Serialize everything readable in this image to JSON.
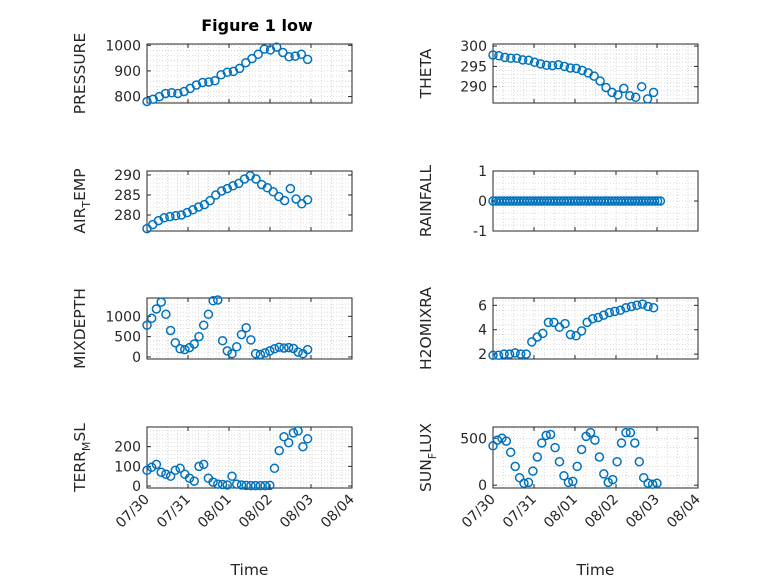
{
  "figure": {
    "title": "Figure 1 low"
  },
  "colors": {
    "marker": "#0072BD",
    "axis": "#262626",
    "grid": "#cfcfcf",
    "background": "#ffffff"
  },
  "chart_data": [
    {
      "id": "pressure",
      "type": "scatter",
      "ylabel": "PRESSURE",
      "xlim": [
        "07/30",
        "08/04"
      ],
      "ylim": [
        775,
        1005
      ],
      "yticks": [
        800,
        900,
        1000
      ],
      "xticks": [
        "07/30",
        "07/31",
        "08/01",
        "08/02",
        "08/03",
        "08/04"
      ],
      "show_xticklabels": false,
      "grid": true,
      "x_start": "07/30",
      "x_end": "08/02 22:00",
      "y": [
        781,
        790,
        800,
        812,
        815,
        812,
        820,
        832,
        845,
        855,
        857,
        862,
        885,
        895,
        898,
        910,
        932,
        948,
        965,
        985,
        982,
        993,
        972,
        955,
        958,
        965,
        945
      ]
    },
    {
      "id": "theta",
      "type": "scatter",
      "ylabel": "THETA",
      "xlim": [
        "07/30",
        "08/04"
      ],
      "ylim": [
        286,
        300.5
      ],
      "yticks": [
        290,
        295,
        300
      ],
      "xticks": [
        "07/30",
        "07/31",
        "08/01",
        "08/02",
        "08/03",
        "08/04"
      ],
      "show_xticklabels": false,
      "grid": true,
      "x_start": "07/30",
      "x_end": "08/02 22:00",
      "y": [
        297.8,
        297.6,
        297.2,
        297.0,
        297.0,
        296.6,
        296.5,
        296.0,
        295.6,
        295.3,
        295.2,
        295.4,
        295.0,
        294.6,
        294.5,
        294.0,
        293.4,
        292.6,
        291.4,
        289.8,
        288.6,
        288.0,
        289.6,
        287.8,
        287.4,
        290.0,
        287.0,
        288.6
      ]
    },
    {
      "id": "air_temp",
      "type": "scatter",
      "ylabel": "AIR_TEMP",
      "xlim": [
        "07/30",
        "08/04"
      ],
      "ylim": [
        276,
        291
      ],
      "yticks": [
        280,
        285,
        290
      ],
      "xticks": [
        "07/30",
        "07/31",
        "08/01",
        "08/02",
        "08/03",
        "08/04"
      ],
      "show_xticklabels": false,
      "grid": true,
      "x_start": "07/30",
      "x_end": "08/02 22:00",
      "y": [
        276.6,
        277.6,
        278.6,
        279.3,
        279.6,
        279.8,
        280.0,
        280.6,
        281.3,
        282.0,
        282.6,
        283.6,
        285.0,
        286.0,
        286.6,
        287.3,
        287.9,
        289.0,
        289.8,
        289.0,
        287.6,
        286.8,
        285.8,
        284.6,
        283.6,
        286.6,
        284.0,
        282.8,
        283.8
      ]
    },
    {
      "id": "rainfall",
      "type": "scatter",
      "ylabel": "RAINFALL",
      "xlim": [
        "07/30",
        "08/04"
      ],
      "ylim": [
        -1,
        1
      ],
      "yticks": [
        -1,
        0,
        1
      ],
      "xticks": [
        "07/30",
        "07/31",
        "08/01",
        "08/02",
        "08/03",
        "08/04"
      ],
      "show_xticklabels": false,
      "grid": true,
      "x_start": "07/30",
      "x_end": "08/03 02:00",
      "y": [
        0,
        0,
        0,
        0,
        0,
        0,
        0,
        0,
        0,
        0,
        0,
        0,
        0,
        0,
        0,
        0,
        0,
        0,
        0,
        0,
        0,
        0,
        0,
        0,
        0,
        0,
        0,
        0,
        0,
        0,
        0,
        0,
        0,
        0,
        0,
        0,
        0,
        0,
        0,
        0,
        0,
        0,
        0,
        0,
        0,
        0,
        0,
        0,
        0,
        0,
        0,
        0,
        0,
        0,
        0,
        0,
        0,
        0,
        0,
        0
      ]
    },
    {
      "id": "mixdepth",
      "type": "scatter",
      "ylabel": "MIXDEPTH",
      "xlim": [
        "07/30",
        "08/04"
      ],
      "ylim": [
        -50,
        1450
      ],
      "yticks": [
        0,
        500,
        1000
      ],
      "xticks": [
        "07/30",
        "07/31",
        "08/01",
        "08/02",
        "08/03",
        "08/04"
      ],
      "show_xticklabels": false,
      "grid": true,
      "x_start": "07/30",
      "x_end": "08/02 22:00",
      "y": [
        780,
        950,
        1180,
        1350,
        1050,
        650,
        350,
        200,
        180,
        230,
        320,
        500,
        780,
        1050,
        1380,
        1400,
        400,
        150,
        80,
        250,
        550,
        720,
        420,
        80,
        60,
        100,
        150,
        200,
        240,
        220,
        230,
        210,
        120,
        80,
        180
      ]
    },
    {
      "id": "h2omixra",
      "type": "scatter",
      "ylabel": "H2OMIXRA",
      "xlim": [
        "07/30",
        "08/04"
      ],
      "ylim": [
        1.6,
        6.6
      ],
      "yticks": [
        2,
        4,
        6
      ],
      "xticks": [
        "07/30",
        "07/31",
        "08/01",
        "08/02",
        "08/03",
        "08/04"
      ],
      "show_xticklabels": false,
      "grid": true,
      "x_start": "07/30",
      "x_end": "08/02 22:00",
      "y": [
        1.9,
        1.9,
        2.0,
        2.0,
        2.1,
        2.0,
        2.0,
        3.0,
        3.4,
        3.7,
        4.6,
        4.6,
        4.2,
        4.5,
        3.6,
        3.5,
        3.9,
        4.6,
        4.9,
        5.0,
        5.2,
        5.4,
        5.5,
        5.6,
        5.8,
        5.9,
        6.0,
        6.1,
        5.9,
        5.8
      ]
    },
    {
      "id": "terr_msl",
      "type": "scatter",
      "ylabel": "TERR_MSL",
      "xlim": [
        "07/30",
        "08/04"
      ],
      "ylim": [
        -10,
        300
      ],
      "yticks": [
        0,
        100,
        200
      ],
      "xticks": [
        "07/30",
        "07/31",
        "08/01",
        "08/02",
        "08/03",
        "08/04"
      ],
      "show_xticklabels": true,
      "xlabel": "Time",
      "grid": true,
      "x_start": "07/30",
      "x_end": "08/02 22:00",
      "y": [
        80,
        95,
        110,
        70,
        60,
        50,
        80,
        90,
        60,
        40,
        25,
        100,
        110,
        40,
        20,
        10,
        8,
        5,
        50,
        10,
        5,
        3,
        2,
        2,
        2,
        2,
        3,
        90,
        180,
        250,
        220,
        270,
        280,
        200,
        240
      ]
    },
    {
      "id": "sun_flux",
      "type": "scatter",
      "ylabel": "SUN_FLUX",
      "xlim": [
        "07/30",
        "08/04"
      ],
      "ylim": [
        -30,
        620
      ],
      "yticks": [
        0,
        500
      ],
      "xticks": [
        "07/30",
        "07/31",
        "08/01",
        "08/02",
        "08/03",
        "08/04"
      ],
      "show_xticklabels": true,
      "xlabel": "Time",
      "grid": true,
      "x_start": "07/30",
      "x_end": "08/03",
      "y": [
        420,
        480,
        500,
        470,
        350,
        200,
        80,
        20,
        30,
        150,
        300,
        450,
        530,
        540,
        400,
        250,
        100,
        30,
        40,
        200,
        380,
        520,
        560,
        480,
        300,
        120,
        30,
        60,
        250,
        450,
        560,
        560,
        450,
        250,
        80,
        20,
        10,
        20
      ]
    }
  ]
}
